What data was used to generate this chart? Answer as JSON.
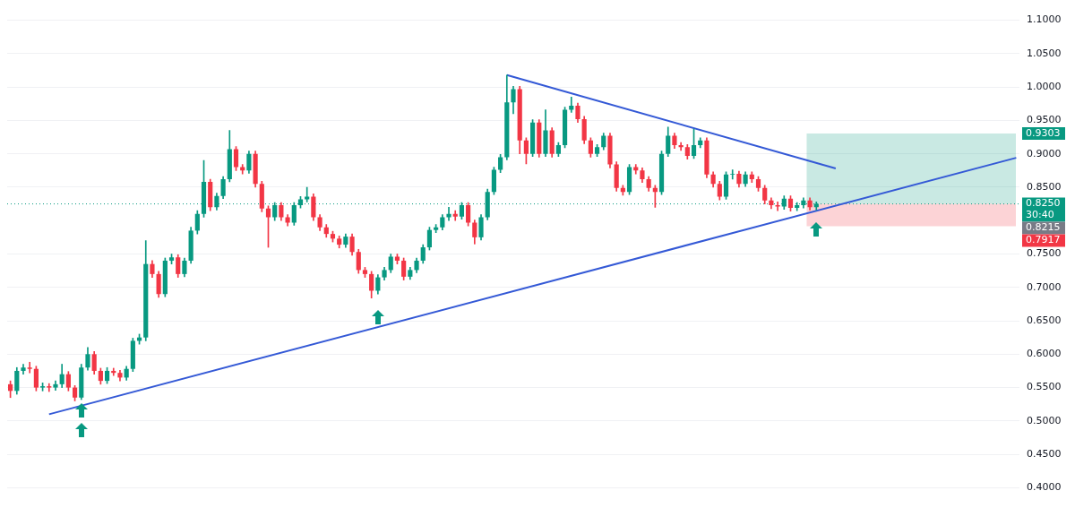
{
  "chart_data": {
    "type": "candlestick",
    "categories": [
      null,
      null,
      null,
      null,
      null,
      null,
      null,
      null,
      null,
      null,
      null,
      null,
      null,
      null,
      null,
      null,
      null,
      null,
      null,
      null,
      null,
      null,
      null,
      null,
      null,
      null,
      null,
      null,
      null,
      null,
      null,
      null,
      null,
      null,
      null,
      null,
      null,
      null,
      null,
      null,
      null,
      null,
      null,
      null,
      null,
      null,
      null,
      null,
      null,
      null,
      null,
      null,
      null,
      null,
      null,
      null,
      null,
      null,
      null,
      null,
      null,
      null,
      null,
      null,
      null,
      null,
      null,
      null,
      null,
      null,
      null,
      null,
      null,
      null,
      null,
      null,
      null,
      null,
      null,
      null,
      null,
      null,
      null,
      null,
      null,
      null,
      null,
      null,
      null,
      null,
      null,
      null,
      null,
      null,
      null,
      null,
      null,
      null,
      null,
      null,
      null,
      null,
      null,
      null,
      null,
      null,
      null,
      null,
      null,
      null,
      null,
      null,
      null,
      null,
      null,
      null,
      null,
      null,
      null,
      null,
      null,
      null,
      null,
      null,
      null,
      null,
      null,
      null,
      null,
      null,
      null,
      null,
      null,
      null,
      null,
      null,
      null,
      null,
      null,
      null,
      null,
      null,
      null,
      null,
      null,
      null,
      null,
      null,
      null,
      null,
      null,
      null,
      null,
      null,
      null,
      null,
      null
    ],
    "ohlc": [
      [
        0.555,
        0.56,
        0.535,
        0.545
      ],
      [
        0.545,
        0.58,
        0.54,
        0.575
      ],
      [
        0.575,
        0.585,
        0.57,
        0.58
      ],
      [
        0.58,
        0.588,
        0.572,
        0.578
      ],
      [
        0.578,
        0.582,
        0.545,
        0.55
      ],
      [
        0.55,
        0.557,
        0.545,
        0.552
      ],
      [
        0.552,
        0.556,
        0.544,
        0.55
      ],
      [
        0.55,
        0.56,
        0.546,
        0.555
      ],
      [
        0.555,
        0.585,
        0.55,
        0.57
      ],
      [
        0.57,
        0.574,
        0.545,
        0.55
      ],
      [
        0.55,
        0.553,
        0.53,
        0.535
      ],
      [
        0.535,
        0.585,
        0.532,
        0.58
      ],
      [
        0.58,
        0.61,
        0.576,
        0.6
      ],
      [
        0.6,
        0.604,
        0.57,
        0.575
      ],
      [
        0.575,
        0.579,
        0.555,
        0.56
      ],
      [
        0.56,
        0.58,
        0.556,
        0.575
      ],
      [
        0.575,
        0.579,
        0.568,
        0.572
      ],
      [
        0.572,
        0.576,
        0.56,
        0.565
      ],
      [
        0.565,
        0.582,
        0.561,
        0.578
      ],
      [
        0.578,
        0.624,
        0.574,
        0.62
      ],
      [
        0.62,
        0.63,
        0.615,
        0.625
      ],
      [
        0.625,
        0.77,
        0.62,
        0.735
      ],
      [
        0.735,
        0.74,
        0.715,
        0.72
      ],
      [
        0.72,
        0.724,
        0.685,
        0.69
      ],
      [
        0.69,
        0.744,
        0.686,
        0.74
      ],
      [
        0.74,
        0.75,
        0.735,
        0.745
      ],
      [
        0.745,
        0.749,
        0.715,
        0.72
      ],
      [
        0.72,
        0.744,
        0.716,
        0.74
      ],
      [
        0.74,
        0.79,
        0.736,
        0.785
      ],
      [
        0.785,
        0.815,
        0.78,
        0.81
      ],
      [
        0.81,
        0.89,
        0.805,
        0.858
      ],
      [
        0.858,
        0.862,
        0.815,
        0.82
      ],
      [
        0.82,
        0.841,
        0.816,
        0.837
      ],
      [
        0.837,
        0.866,
        0.833,
        0.862
      ],
      [
        0.862,
        0.935,
        0.858,
        0.907
      ],
      [
        0.907,
        0.911,
        0.875,
        0.88
      ],
      [
        0.88,
        0.884,
        0.87,
        0.875
      ],
      [
        0.875,
        0.904,
        0.871,
        0.9
      ],
      [
        0.9,
        0.904,
        0.85,
        0.855
      ],
      [
        0.855,
        0.859,
        0.813,
        0.818
      ],
      [
        0.818,
        0.822,
        0.76,
        0.805
      ],
      [
        0.805,
        0.827,
        0.8,
        0.823
      ],
      [
        0.823,
        0.827,
        0.8,
        0.805
      ],
      [
        0.805,
        0.809,
        0.792,
        0.797
      ],
      [
        0.797,
        0.827,
        0.793,
        0.823
      ],
      [
        0.823,
        0.836,
        0.819,
        0.832
      ],
      [
        0.832,
        0.85,
        0.828,
        0.836
      ],
      [
        0.836,
        0.84,
        0.8,
        0.805
      ],
      [
        0.805,
        0.809,
        0.785,
        0.79
      ],
      [
        0.79,
        0.794,
        0.775,
        0.78
      ],
      [
        0.78,
        0.784,
        0.768,
        0.773
      ],
      [
        0.773,
        0.777,
        0.759,
        0.764
      ],
      [
        0.764,
        0.78,
        0.76,
        0.776
      ],
      [
        0.776,
        0.78,
        0.748,
        0.753
      ],
      [
        0.753,
        0.757,
        0.721,
        0.726
      ],
      [
        0.726,
        0.73,
        0.715,
        0.72
      ],
      [
        0.72,
        0.724,
        0.684,
        0.695
      ],
      [
        0.695,
        0.719,
        0.69,
        0.715
      ],
      [
        0.715,
        0.73,
        0.711,
        0.726
      ],
      [
        0.726,
        0.75,
        0.722,
        0.746
      ],
      [
        0.746,
        0.75,
        0.735,
        0.74
      ],
      [
        0.74,
        0.744,
        0.711,
        0.716
      ],
      [
        0.716,
        0.73,
        0.712,
        0.726
      ],
      [
        0.726,
        0.744,
        0.722,
        0.74
      ],
      [
        0.74,
        0.764,
        0.736,
        0.76
      ],
      [
        0.76,
        0.79,
        0.756,
        0.786
      ],
      [
        0.786,
        0.794,
        0.782,
        0.79
      ],
      [
        0.79,
        0.809,
        0.786,
        0.805
      ],
      [
        0.805,
        0.82,
        0.8,
        0.81
      ],
      [
        0.81,
        0.815,
        0.8,
        0.806
      ],
      [
        0.806,
        0.827,
        0.802,
        0.823
      ],
      [
        0.823,
        0.827,
        0.792,
        0.797
      ],
      [
        0.797,
        0.801,
        0.765,
        0.775
      ],
      [
        0.775,
        0.809,
        0.771,
        0.805
      ],
      [
        0.805,
        0.847,
        0.801,
        0.843
      ],
      [
        0.843,
        0.88,
        0.839,
        0.876
      ],
      [
        0.876,
        0.899,
        0.872,
        0.895
      ],
      [
        0.895,
        1.018,
        0.891,
        0.977
      ],
      [
        0.977,
        1.001,
        0.96,
        0.997
      ],
      [
        0.997,
        1.001,
        0.9,
        0.92
      ],
      [
        0.92,
        0.924,
        0.885,
        0.9
      ],
      [
        0.9,
        0.951,
        0.896,
        0.947
      ],
      [
        0.947,
        0.951,
        0.895,
        0.9
      ],
      [
        0.9,
        0.966,
        0.896,
        0.935
      ],
      [
        0.935,
        0.939,
        0.895,
        0.9
      ],
      [
        0.9,
        0.917,
        0.896,
        0.913
      ],
      [
        0.913,
        0.97,
        0.909,
        0.966
      ],
      [
        0.966,
        0.985,
        0.962,
        0.972
      ],
      [
        0.972,
        0.976,
        0.947,
        0.952
      ],
      [
        0.952,
        0.956,
        0.915,
        0.92
      ],
      [
        0.92,
        0.924,
        0.895,
        0.9
      ],
      [
        0.9,
        0.914,
        0.896,
        0.91
      ],
      [
        0.91,
        0.931,
        0.906,
        0.927
      ],
      [
        0.927,
        0.931,
        0.879,
        0.884
      ],
      [
        0.884,
        0.888,
        0.844,
        0.849
      ],
      [
        0.849,
        0.853,
        0.838,
        0.843
      ],
      [
        0.843,
        0.884,
        0.839,
        0.88
      ],
      [
        0.88,
        0.884,
        0.87,
        0.875
      ],
      [
        0.875,
        0.879,
        0.857,
        0.862
      ],
      [
        0.862,
        0.866,
        0.844,
        0.849
      ],
      [
        0.849,
        0.853,
        0.82,
        0.843
      ],
      [
        0.843,
        0.904,
        0.839,
        0.9
      ],
      [
        0.9,
        0.94,
        0.896,
        0.927
      ],
      [
        0.927,
        0.931,
        0.908,
        0.913
      ],
      [
        0.913,
        0.917,
        0.905,
        0.91
      ],
      [
        0.91,
        0.914,
        0.892,
        0.897
      ],
      [
        0.897,
        0.937,
        0.893,
        0.913
      ],
      [
        0.913,
        0.924,
        0.909,
        0.92
      ],
      [
        0.92,
        0.924,
        0.864,
        0.869
      ],
      [
        0.869,
        0.873,
        0.85,
        0.855
      ],
      [
        0.855,
        0.859,
        0.831,
        0.836
      ],
      [
        0.836,
        0.873,
        0.832,
        0.869
      ],
      [
        0.869,
        0.876,
        0.862,
        0.87
      ],
      [
        0.87,
        0.874,
        0.85,
        0.855
      ],
      [
        0.855,
        0.873,
        0.851,
        0.869
      ],
      [
        0.869,
        0.873,
        0.857,
        0.862
      ],
      [
        0.862,
        0.866,
        0.844,
        0.849
      ],
      [
        0.849,
        0.853,
        0.825,
        0.83
      ],
      [
        0.83,
        0.834,
        0.818,
        0.823
      ],
      [
        0.823,
        0.828,
        0.815,
        0.821
      ],
      [
        0.821,
        0.837,
        0.817,
        0.833
      ],
      [
        0.833,
        0.837,
        0.814,
        0.819
      ],
      [
        0.819,
        0.827,
        0.815,
        0.823
      ],
      [
        0.823,
        0.834,
        0.819,
        0.83
      ],
      [
        0.83,
        0.834,
        0.816,
        0.82
      ],
      [
        0.82,
        0.828,
        0.816,
        0.825
      ],
      null,
      null,
      null,
      null,
      null,
      null,
      null,
      null,
      null,
      null,
      null,
      null,
      null,
      null,
      null,
      null,
      null,
      null,
      null,
      null,
      null,
      null,
      null,
      null,
      null,
      null,
      null,
      null,
      null,
      null,
      null
    ],
    "colors": [
      "#f23645",
      "#089981",
      "#089981",
      "#f23645",
      "#f23645",
      "#089981",
      "#f23645",
      "#089981",
      "#089981",
      "#f23645",
      "#f23645",
      "#089981",
      "#089981",
      "#f23645",
      "#f23645",
      "#089981",
      "#f23645",
      "#f23645",
      "#089981",
      "#089981",
      "#089981",
      "#089981",
      "#f23645",
      "#f23645",
      "#089981",
      "#089981",
      "#f23645",
      "#089981",
      "#089981",
      "#089981",
      "#089981",
      "#f23645",
      "#089981",
      "#089981",
      "#089981",
      "#f23645",
      "#f23645",
      "#089981",
      "#f23645",
      "#f23645",
      "#f23645",
      "#089981",
      "#f23645",
      "#f23645",
      "#089981",
      "#089981",
      "#089981",
      "#f23645",
      "#f23645",
      "#f23645",
      "#f23645",
      "#f23645",
      "#089981",
      "#f23645",
      "#f23645",
      "#f23645",
      "#f23645",
      "#089981",
      "#089981",
      "#089981",
      "#f23645",
      "#f23645",
      "#089981",
      "#089981",
      "#089981",
      "#089981",
      "#089981",
      "#089981",
      "#089981",
      "#f23645",
      "#089981",
      "#f23645",
      "#f23645",
      "#089981",
      "#089981",
      "#089981",
      "#089981",
      "#089981",
      "#089981",
      "#f23645",
      "#f23645",
      "#089981",
      "#f23645",
      "#089981",
      "#f23645",
      "#089981",
      "#089981",
      "#089981",
      "#f23645",
      "#f23645",
      "#f23645",
      "#089981",
      "#089981",
      "#f23645",
      "#f23645",
      "#f23645",
      "#089981",
      "#f23645",
      "#f23645",
      "#f23645",
      "#f23645",
      "#089981",
      "#089981",
      "#f23645",
      "#f23645",
      "#f23645",
      "#089981",
      "#089981",
      "#f23645",
      "#f23645",
      "#f23645",
      "#089981",
      "#089981",
      "#f23645",
      "#089981",
      "#f23645",
      "#f23645",
      "#f23645",
      "#f23645",
      "#f23645",
      "#089981",
      "#f23645",
      "#089981",
      "#089981",
      "#f23645",
      "#089981",
      null,
      null,
      null,
      null,
      null,
      null,
      null,
      null,
      null,
      null,
      null,
      null,
      null,
      null,
      null,
      null,
      null,
      null,
      null,
      null,
      null,
      null,
      null,
      null,
      null,
      null,
      null,
      null,
      null,
      null,
      null
    ],
    "series": [
      {
        "type": "line",
        "color": "#3459d6",
        "values": [
          null,
          null,
          null,
          null,
          null,
          null,
          0.51,
          null,
          null,
          null,
          null,
          null,
          null,
          null,
          null,
          null,
          null,
          null,
          null,
          null,
          null,
          null,
          null,
          null,
          null,
          null,
          null,
          null,
          null,
          null,
          null,
          null,
          null,
          null,
          null,
          null,
          null,
          null,
          null,
          null,
          null,
          null,
          null,
          null,
          null,
          null,
          null,
          null,
          null,
          null,
          null,
          null,
          null,
          null,
          null,
          null,
          null,
          null,
          null,
          null,
          null,
          null,
          null,
          null,
          null,
          null,
          null,
          null,
          null,
          null,
          null,
          null,
          null,
          null,
          null,
          null,
          null,
          null,
          null,
          null,
          null,
          null,
          null,
          null,
          null,
          null,
          null,
          null,
          null,
          null,
          null,
          null,
          null,
          null,
          null,
          null,
          null,
          null,
          null,
          null,
          null,
          null,
          null,
          null,
          null,
          null,
          null,
          null,
          null,
          null,
          null,
          null,
          null,
          null,
          null,
          null,
          null,
          null,
          null,
          null,
          null,
          null,
          null,
          null,
          null,
          null,
          null,
          null,
          null,
          null,
          null,
          null,
          null,
          null,
          null,
          null,
          null,
          null,
          null,
          null,
          null,
          null,
          null,
          null,
          null,
          null,
          null,
          null,
          null,
          null,
          null,
          null,
          null,
          null,
          null,
          null,
          0.894
        ]
      },
      {
        "type": "line",
        "color": "#3459d6",
        "values": [
          null,
          null,
          null,
          null,
          null,
          null,
          null,
          null,
          null,
          null,
          null,
          null,
          null,
          null,
          null,
          null,
          null,
          null,
          null,
          null,
          null,
          null,
          null,
          null,
          null,
          null,
          null,
          null,
          null,
          null,
          null,
          null,
          null,
          null,
          null,
          null,
          null,
          null,
          null,
          null,
          null,
          null,
          null,
          null,
          null,
          null,
          null,
          null,
          null,
          null,
          null,
          null,
          null,
          null,
          null,
          null,
          null,
          null,
          null,
          null,
          null,
          null,
          null,
          null,
          null,
          null,
          null,
          null,
          null,
          null,
          null,
          null,
          null,
          null,
          null,
          null,
          null,
          1.018,
          null,
          null,
          null,
          null,
          null,
          null,
          null,
          null,
          null,
          null,
          null,
          null,
          null,
          null,
          null,
          null,
          null,
          null,
          null,
          null,
          null,
          null,
          null,
          null,
          null,
          null,
          null,
          null,
          null,
          null,
          null,
          null,
          null,
          null,
          null,
          null,
          null,
          null,
          null,
          null,
          null,
          null,
          null,
          null,
          null,
          null,
          null,
          null,
          null,
          null,
          0.878,
          null,
          null,
          null,
          null,
          null,
          null,
          null,
          null,
          null,
          null,
          null,
          null,
          null,
          null,
          null,
          null,
          null,
          null,
          null,
          null,
          null,
          null,
          null,
          null,
          null,
          null,
          null,
          null
        ]
      }
    ],
    "ylim": [
      0.4,
      1.1
    ],
    "yticks": [
      {
        "value": 0.4,
        "label": "0.4000"
      },
      {
        "value": 0.45,
        "label": "0.4500"
      },
      {
        "value": 0.5,
        "label": "0.5000"
      },
      {
        "value": 0.55,
        "label": "0.5500"
      },
      {
        "value": 0.6,
        "label": "0.6000"
      },
      {
        "value": 0.65,
        "label": "0.6500"
      },
      {
        "value": 0.7,
        "label": "0.7000"
      },
      {
        "value": 0.75,
        "label": "0.7500"
      },
      {
        "value": 0.85,
        "label": "0.8500"
      },
      {
        "value": 0.9,
        "label": "0.9000"
      },
      {
        "value": 0.95,
        "label": "0.9500"
      },
      {
        "value": 1.0,
        "label": "1.0000"
      },
      {
        "value": 1.05,
        "label": "1.0500"
      },
      {
        "value": 1.1,
        "label": "1.1000"
      }
    ],
    "grid": "y",
    "tick_labels": "y",
    "bands": [
      {
        "axis": "y",
        "from": 0.825,
        "to": 0.9303,
        "label": "0.9303",
        "color": "#089981"
      },
      {
        "axis": "y",
        "from": 0.825,
        "to": 0.7917,
        "label": "0.7917",
        "color": "#f23645"
      }
    ],
    "ref_lines": [
      {
        "axis": "y",
        "value": 0.825,
        "label": "0.8250",
        "color": "#089981",
        "line_style": "dotted"
      }
    ],
    "annotations": [
      "30:40",
      "0.8215"
    ]
  }
}
